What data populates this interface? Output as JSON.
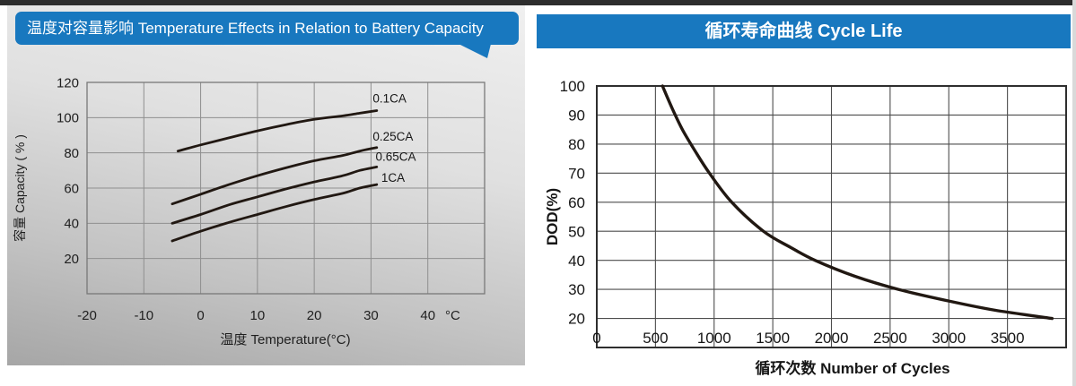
{
  "colors": {
    "header_blue": "#1878bf",
    "curve": "#211812",
    "left_panel_gray": "#c9c9c9",
    "text_dark": "#1f1f1f"
  },
  "left_panel": {
    "title": "温度对容量影响 Temperature Effects in Relation to Battery Capacity"
  },
  "right_panel": {
    "title": "循环寿命曲线 Cycle Life"
  },
  "chart_data": [
    {
      "id": "temperature-capacity",
      "type": "line",
      "title": "温度对容量影响 Temperature Effects in Relation to Battery Capacity",
      "xlabel": "温度 Temperature(°C)",
      "ylabel": "容量 Capacity ( % )",
      "x_unit": "°C",
      "xlim": [
        -20,
        50
      ],
      "ylim": [
        0,
        120
      ],
      "xticks": [
        -20,
        -10,
        0,
        10,
        20,
        30,
        40
      ],
      "yticks": [
        20,
        40,
        60,
        80,
        100,
        120
      ],
      "grid": true,
      "legend_position": "inline-labels",
      "series": [
        {
          "name": "0.1CA",
          "x": [
            -4,
            0,
            5,
            10,
            15,
            20,
            25,
            28,
            31
          ],
          "y": [
            81,
            84.5,
            88.5,
            92.5,
            96,
            99,
            101,
            102.5,
            104
          ]
        },
        {
          "name": "0.25CA",
          "x": [
            -5,
            0,
            5,
            10,
            15,
            20,
            25,
            28,
            31
          ],
          "y": [
            51,
            56.5,
            62,
            67,
            71.5,
            75.5,
            78.5,
            81,
            83
          ]
        },
        {
          "name": "0.65CA",
          "x": [
            -5,
            0,
            5,
            10,
            15,
            20,
            25,
            28,
            31
          ],
          "y": [
            40,
            45,
            50.5,
            55,
            59.5,
            63.5,
            67,
            70,
            72
          ]
        },
        {
          "name": "1CA",
          "x": [
            -5,
            0,
            5,
            10,
            15,
            20,
            25,
            28,
            31
          ],
          "y": [
            30,
            35.5,
            40.5,
            45,
            49.5,
            53.5,
            57,
            60,
            62
          ]
        }
      ],
      "series_label_positions": [
        {
          "x": 30.3,
          "y": 108.5
        },
        {
          "x": 30.3,
          "y": 87.0
        },
        {
          "x": 30.8,
          "y": 75.5
        },
        {
          "x": 31.8,
          "y": 63.5
        }
      ]
    },
    {
      "id": "cycle-life",
      "type": "line",
      "title": "循环寿命曲线 Cycle Life",
      "xlabel": "循环次数 Number of Cycles",
      "ylabel": "DOD(%)",
      "xlim": [
        0,
        4000
      ],
      "ylim": [
        10,
        100
      ],
      "xticks": [
        0,
        500,
        1000,
        1500,
        2000,
        2500,
        3000,
        3500
      ],
      "yticks": [
        20,
        30,
        40,
        50,
        60,
        70,
        80,
        90,
        100
      ],
      "grid": true,
      "series": [
        {
          "name": "DOD",
          "x": [
            560,
            640,
            730,
            840,
            960,
            1150,
            1420,
            1650,
            1860,
            2200,
            2570,
            3000,
            3400,
            3880
          ],
          "y": [
            100,
            92.5,
            85,
            77.5,
            70,
            60,
            50,
            44.5,
            40,
            34.5,
            30,
            26,
            22.8,
            20
          ]
        }
      ]
    }
  ]
}
